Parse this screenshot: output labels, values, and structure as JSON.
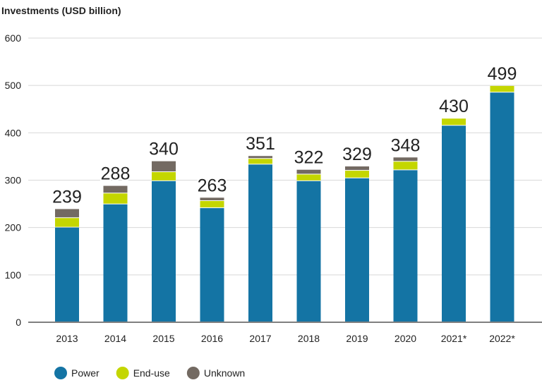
{
  "chart_data": {
    "type": "bar",
    "stacked": true,
    "ylabel": "Investments (USD billion)",
    "ylim": [
      0,
      600
    ],
    "yticks": [
      0,
      100,
      200,
      300,
      400,
      500,
      600
    ],
    "grid": true,
    "legend_position": "bottom-left",
    "categories": [
      "2013",
      "2014",
      "2015",
      "2016",
      "2017",
      "2018",
      "2019",
      "2020",
      "2021*",
      "2022*"
    ],
    "series": [
      {
        "name": "Power",
        "color": "#1474a4",
        "values": [
          200,
          249,
          298,
          241,
          333,
          298,
          304,
          321,
          415,
          485
        ]
      },
      {
        "name": "End-use",
        "color": "#c4d600",
        "values": [
          20,
          23,
          19,
          15,
          12,
          14,
          16,
          18,
          15,
          14
        ]
      },
      {
        "name": "Unknown",
        "color": "#736a62",
        "values": [
          19,
          16,
          23,
          7,
          6,
          10,
          9,
          9,
          0,
          0
        ]
      }
    ],
    "totals": [
      239,
      288,
      340,
      263,
      351,
      322,
      329,
      348,
      430,
      499
    ]
  }
}
